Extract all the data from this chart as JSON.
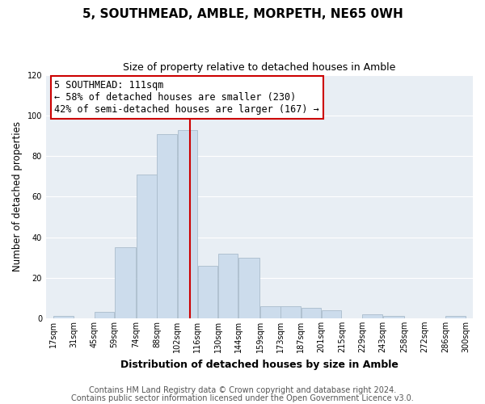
{
  "title": "5, SOUTHMEAD, AMBLE, MORPETH, NE65 0WH",
  "subtitle": "Size of property relative to detached houses in Amble",
  "xlabel": "Distribution of detached houses by size in Amble",
  "ylabel": "Number of detached properties",
  "bar_color": "#ccdcec",
  "bar_edge_color": "#aabccc",
  "bins": [
    17,
    31,
    45,
    59,
    74,
    88,
    102,
    116,
    130,
    144,
    159,
    173,
    187,
    201,
    215,
    229,
    243,
    258,
    272,
    286,
    300
  ],
  "bin_labels": [
    "17sqm",
    "31sqm",
    "45sqm",
    "59sqm",
    "74sqm",
    "88sqm",
    "102sqm",
    "116sqm",
    "130sqm",
    "144sqm",
    "159sqm",
    "173sqm",
    "187sqm",
    "201sqm",
    "215sqm",
    "229sqm",
    "243sqm",
    "258sqm",
    "272sqm",
    "286sqm",
    "300sqm"
  ],
  "counts": [
    1,
    0,
    3,
    35,
    71,
    91,
    93,
    26,
    32,
    30,
    6,
    6,
    5,
    4,
    0,
    2,
    1,
    0,
    0,
    1
  ],
  "vline_x": 111,
  "vline_color": "#cc0000",
  "annotation_title": "5 SOUTHMEAD: 111sqm",
  "annotation_line1": "← 58% of detached houses are smaller (230)",
  "annotation_line2": "42% of semi-detached houses are larger (167) →",
  "annotation_box_color": "#ffffff",
  "annotation_box_edge": "#cc0000",
  "ylim": [
    0,
    120
  ],
  "yticks": [
    0,
    20,
    40,
    60,
    80,
    100,
    120
  ],
  "footer1": "Contains HM Land Registry data © Crown copyright and database right 2024.",
  "footer2": "Contains public sector information licensed under the Open Government Licence v3.0.",
  "background_color": "#ffffff",
  "plot_background": "#e8eef4",
  "grid_color": "#ffffff",
  "title_fontsize": 11,
  "subtitle_fontsize": 9,
  "ylabel_fontsize": 8.5,
  "xlabel_fontsize": 9,
  "tick_fontsize": 7,
  "footer_fontsize": 7,
  "annotation_fontsize": 8.5
}
